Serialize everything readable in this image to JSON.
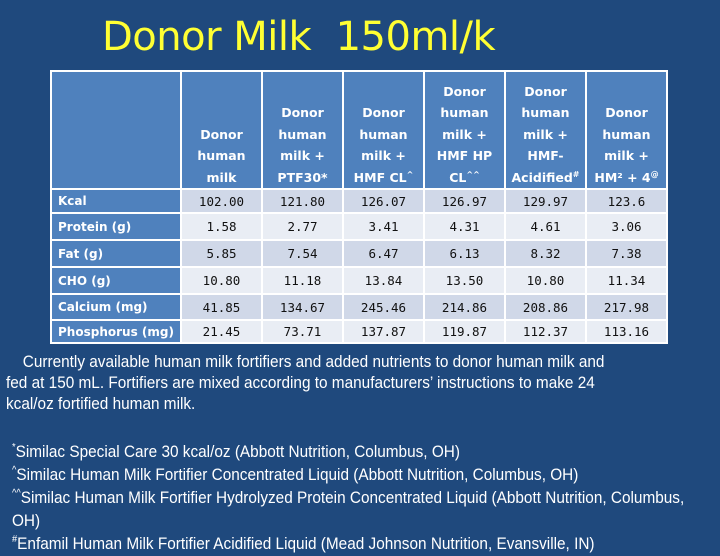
{
  "slide": {
    "title": "Donor Milk  150ml/k",
    "colors": {
      "background": "#1f497d",
      "title": "#ffff33",
      "header_fill": "#4f81bd",
      "row_odd": "#d0d8e8",
      "row_even": "#e9edf4"
    }
  },
  "table": {
    "columns": [
      {
        "lines": [
          "Donor",
          "human",
          "milk"
        ],
        "sup": ""
      },
      {
        "lines": [
          "Donor",
          "human",
          "milk +",
          "PTF30*"
        ],
        "sup": ""
      },
      {
        "lines": [
          "Donor",
          "human",
          "milk +",
          "HMF CL"
        ],
        "sup": "^"
      },
      {
        "lines": [
          "Donor",
          "human",
          "milk +",
          "HMF HP",
          "CL"
        ],
        "sup": "^^"
      },
      {
        "lines": [
          "Donor",
          "human",
          "milk +",
          "HMF-",
          "Acidified"
        ],
        "sup": "#"
      },
      {
        "lines": [
          "Donor",
          "human",
          "milk +",
          "HM² + 4"
        ],
        "sup": "@"
      }
    ],
    "rows": [
      {
        "label": "Kcal",
        "values": [
          "102.00",
          "121.80",
          "126.07",
          "126.97",
          "129.97",
          "123.6"
        ]
      },
      {
        "label": "Protein (g)",
        "values": [
          "1.58",
          "2.77",
          "3.41",
          "4.31",
          "4.61",
          "3.06"
        ]
      },
      {
        "label": "Fat (g)",
        "values": [
          "5.85",
          "7.54",
          "6.47",
          "6.13",
          "8.32",
          "7.38"
        ]
      },
      {
        "label": "CHO (g)",
        "values": [
          "10.80",
          "11.18",
          "13.84",
          "13.50",
          "10.80",
          "11.34"
        ]
      },
      {
        "label": "Calcium (mg)",
        "values": [
          "41.85",
          "134.67",
          "245.46",
          "214.86",
          "208.86",
          "217.98"
        ]
      },
      {
        "label": "Phosphorus (mg)",
        "values": [
          "21.45",
          "73.71",
          "137.87",
          "119.87",
          "112.37",
          "113.16"
        ]
      }
    ]
  },
  "caption": {
    "line1": "Currently available human milk fortifiers and added nutrients to donor human milk and",
    "line2": "fed at 150 mL. Fortifiers are mixed according to manufacturers’ instructions to make 24",
    "line3": "kcal/oz fortified human milk."
  },
  "footnotes": [
    {
      "mark": "*",
      "text": "Similac Special Care 30 kcal/oz (Abbott Nutrition, Columbus, OH)"
    },
    {
      "mark": "^",
      "text": "Similac Human Milk Fortifier Concentrated Liquid (Abbott Nutrition, Columbus, OH)"
    },
    {
      "mark": "^^",
      "text": "Similac Human Milk Fortifier Hydrolyzed Protein Concentrated Liquid (Abbott Nutrition, Columbus, OH)"
    },
    {
      "mark": "#",
      "text": "Enfamil Human Milk Fortifier Acidified Liquid (Mead Johnson Nutrition, Evansville, IN)"
    }
  ]
}
